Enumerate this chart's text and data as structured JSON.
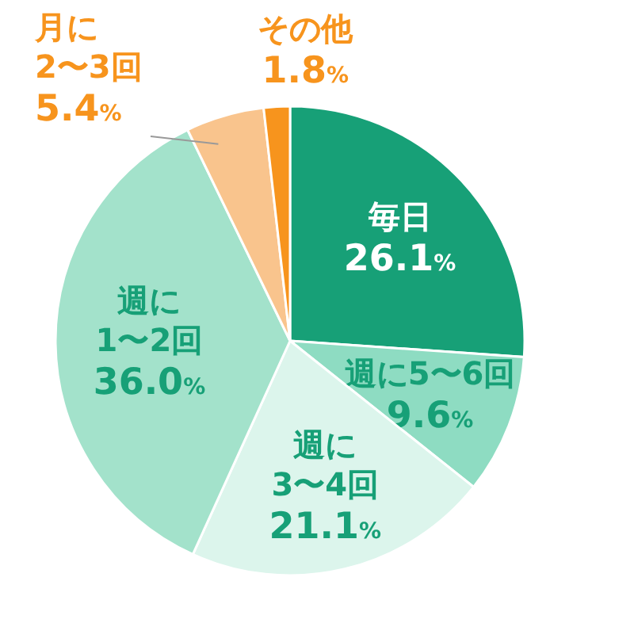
{
  "chart_data": {
    "type": "pie",
    "categories": [
      "毎日",
      "週に5〜6回",
      "週に\n3〜4回",
      "週に\n1〜2回",
      "月に\n2〜3回",
      "その他"
    ],
    "values": [
      26.1,
      9.6,
      21.1,
      36.0,
      5.4,
      1.8
    ],
    "value_labels": [
      "26.1%",
      "9.6%",
      "21.1%",
      "36.0%",
      "5.4%",
      "1.8%"
    ],
    "colors": [
      "#17a077",
      "#8edcc2",
      "#dcf5ec",
      "#a3e2cb",
      "#f9c48d",
      "#f7941d"
    ]
  }
}
